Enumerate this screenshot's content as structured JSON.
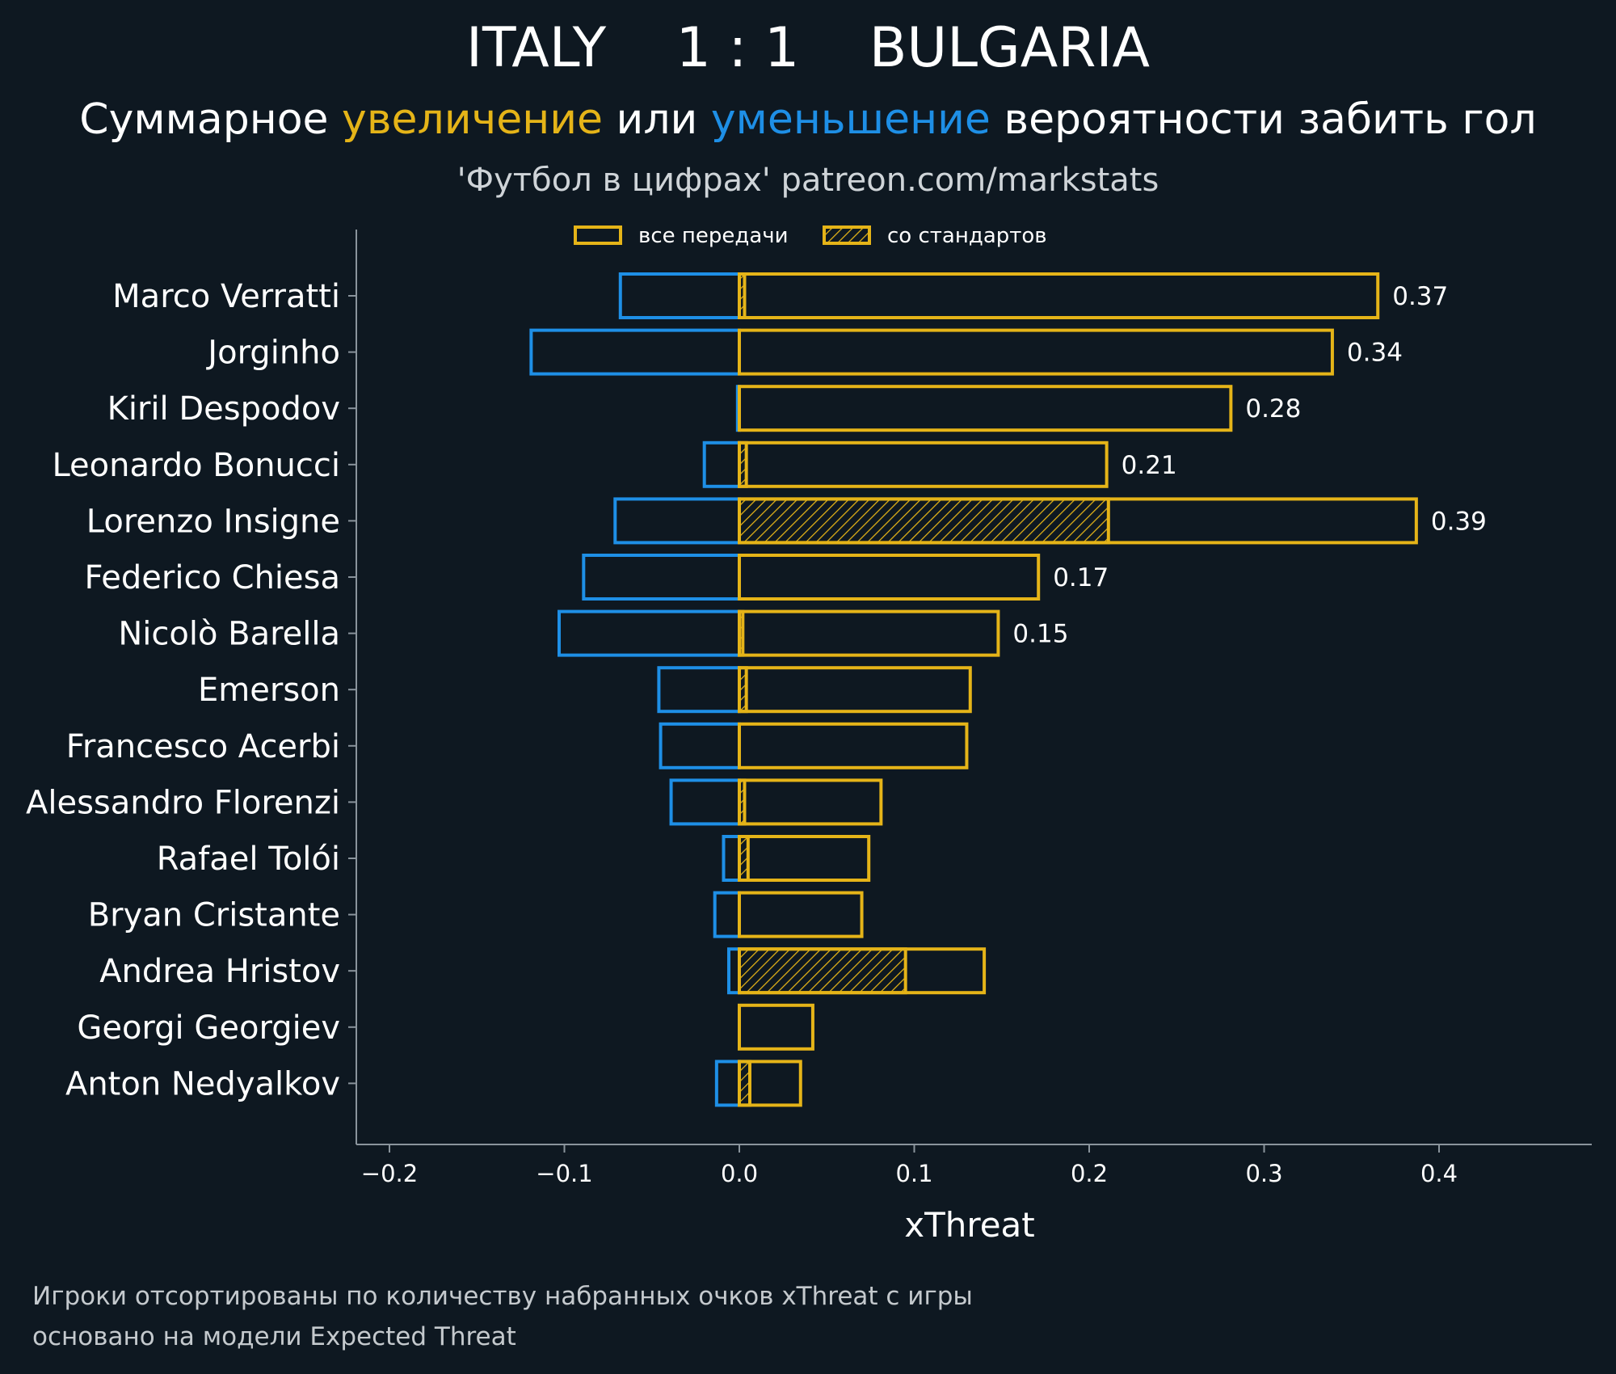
{
  "header": {
    "title": "ITALY    1 : 1    BULGARIA",
    "subtitle_parts": [
      {
        "text": "Суммарное ",
        "color": "#ffffff"
      },
      {
        "text": "увеличение",
        "color": "#e5b418"
      },
      {
        "text": " или ",
        "color": "#ffffff"
      },
      {
        "text": "уменьшение",
        "color": "#1e8fe6"
      },
      {
        "text": " вероятности забить гол",
        "color": "#ffffff"
      }
    ],
    "source": "'Футбол в цифрах' patreon.com/markstats"
  },
  "legend": {
    "all_passes": "все передачи",
    "set_pieces": "со стандартов",
    "placement": "top-center"
  },
  "footer": {
    "line1": "Игроки отсортированы по количеству набранных очков xThreat с игры",
    "line2": "основано на модели Expected Threat"
  },
  "colors": {
    "background": "#0e1821",
    "positive": "#e5b418",
    "negative": "#1e8fe6",
    "axis": "#8a949c"
  },
  "chart_data": {
    "type": "bar",
    "orientation": "horizontal",
    "xlabel": "xThreat",
    "ylabel": "",
    "xlim": [
      -0.2,
      0.48
    ],
    "xticks": [
      -0.2,
      -0.1,
      0.0,
      0.1,
      0.2,
      0.3,
      0.4
    ],
    "xtick_labels": [
      "−0.2",
      "−0.1",
      "0.0",
      "0.1",
      "0.2",
      "0.3",
      "0.4"
    ],
    "grid": false,
    "categories": [
      "Marco Verratti",
      "Jorginho",
      "Kiril Despodov",
      "Leonardo Bonucci",
      "Lorenzo Insigne",
      "Federico Chiesa",
      "Nicolò Barella",
      "Emerson",
      "Francesco Acerbi",
      "Alessandro Florenzi",
      "Rafael Tolói",
      "Bryan Cristante",
      "Andrea Hristov",
      "Georgi Georgiev",
      "Anton Nedyalkov"
    ],
    "series": [
      {
        "name": "все передачи",
        "role": "positive",
        "values": [
          0.365,
          0.339,
          0.281,
          0.21,
          0.387,
          0.171,
          0.148,
          0.132,
          0.13,
          0.081,
          0.074,
          0.07,
          0.14,
          0.042,
          0.035
        ]
      },
      {
        "name": "со стандартов",
        "role": "positive-hatched",
        "values": [
          0.003,
          0.0,
          0.0,
          0.004,
          0.211,
          0.0,
          0.002,
          0.004,
          0.0,
          0.003,
          0.005,
          0.0,
          0.095,
          0.0,
          0.006
        ]
      },
      {
        "role": "negative",
        "values": [
          -0.068,
          -0.119,
          -0.001,
          -0.02,
          -0.071,
          -0.089,
          -0.103,
          -0.046,
          -0.045,
          -0.039,
          -0.009,
          -0.014,
          -0.006,
          0.0,
          -0.013
        ]
      }
    ],
    "bar_labels": [
      "0.37",
      "0.34",
      "0.28",
      "0.21",
      "0.39",
      "0.17",
      "0.15",
      "",
      "",
      "",
      "",
      "",
      "",
      "",
      ""
    ]
  }
}
